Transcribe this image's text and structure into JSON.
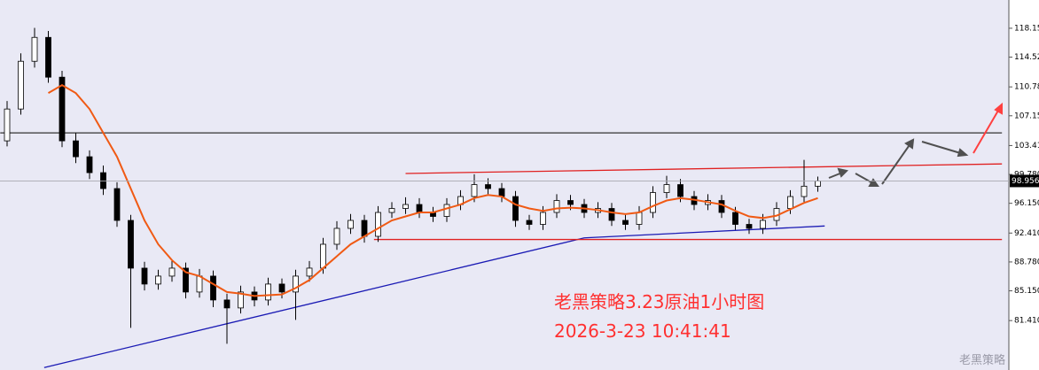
{
  "chart_data": {
    "type": "candlestick",
    "ylim": [
      75.2,
      121.7
    ],
    "yticks": [
      {
        "value": 118.15,
        "label": "118.150"
      },
      {
        "value": 114.52,
        "label": "114.520"
      },
      {
        "value": 110.78,
        "label": "110.780"
      },
      {
        "value": 107.15,
        "label": "107.150"
      },
      {
        "value": 103.41,
        "label": "103.410"
      },
      {
        "value": 99.78,
        "label": "99.780"
      },
      {
        "value": 96.15,
        "label": "96.150"
      },
      {
        "value": 92.41,
        "label": "92.410"
      },
      {
        "value": 88.78,
        "label": "88.780"
      },
      {
        "value": 85.15,
        "label": "85.150"
      },
      {
        "value": 81.41,
        "label": "81.410"
      }
    ],
    "current_price": 98.956,
    "up_color": "#ffffff",
    "down_color": "#000000",
    "candles": [
      [
        104,
        109,
        103.3,
        108
      ],
      [
        108,
        115,
        107.3,
        114
      ],
      [
        114,
        118.2,
        113.2,
        117
      ],
      [
        117,
        117.8,
        111.3,
        112
      ],
      [
        112,
        112.8,
        103.2,
        104
      ],
      [
        104,
        105,
        101.2,
        102
      ],
      [
        102,
        102.8,
        99.2,
        100
      ],
      [
        100,
        100.9,
        97.2,
        98
      ],
      [
        98,
        98.8,
        93.2,
        94
      ],
      [
        94,
        94.7,
        80.5,
        88
      ],
      [
        88,
        88.8,
        85.2,
        86
      ],
      [
        86,
        87.8,
        85.3,
        87
      ],
      [
        87,
        88.9,
        86.3,
        88
      ],
      [
        88,
        88.7,
        84.2,
        85
      ],
      [
        85,
        87.9,
        84.3,
        87
      ],
      [
        87,
        87.7,
        83.1,
        84
      ],
      [
        84,
        84.8,
        78.5,
        83
      ],
      [
        83,
        85.8,
        82.3,
        85
      ],
      [
        85,
        85.7,
        83.2,
        84
      ],
      [
        84,
        86.8,
        83.3,
        86
      ],
      [
        86,
        86.7,
        84.2,
        85
      ],
      [
        85,
        87.8,
        81.5,
        87
      ],
      [
        87,
        88.9,
        86.3,
        88
      ],
      [
        88,
        91.8,
        87.3,
        91
      ],
      [
        91,
        93.9,
        90.3,
        93
      ],
      [
        93,
        94.8,
        92.3,
        94
      ],
      [
        94,
        94.7,
        91.2,
        92
      ],
      [
        92,
        95.8,
        91.3,
        95
      ],
      [
        95,
        96.3,
        94.3,
        95.5
      ],
      [
        95.5,
        96.9,
        94.8,
        96
      ],
      [
        96,
        96.8,
        94.3,
        95
      ],
      [
        95,
        95.7,
        93.8,
        94.5
      ],
      [
        94.5,
        96.8,
        93.8,
        96
      ],
      [
        96,
        97.8,
        95.3,
        97
      ],
      [
        97,
        99.8,
        96.3,
        98.5
      ],
      [
        98.5,
        99.3,
        97.3,
        98
      ],
      [
        98,
        98.7,
        96.3,
        97
      ],
      [
        97,
        97.7,
        93.2,
        94
      ],
      [
        94,
        94.7,
        92.8,
        93.5
      ],
      [
        93.5,
        95.8,
        92.8,
        95
      ],
      [
        95,
        97.3,
        94.3,
        96.5
      ],
      [
        96.5,
        97.2,
        95.3,
        96
      ],
      [
        96,
        96.7,
        94.3,
        95
      ],
      [
        95,
        96.3,
        94.3,
        95.5
      ],
      [
        95.5,
        96.2,
        93.3,
        94
      ],
      [
        94,
        94.7,
        92.8,
        93.5
      ],
      [
        93.5,
        95.8,
        92.8,
        95
      ],
      [
        95,
        98.3,
        94.3,
        97.5
      ],
      [
        97.5,
        99.6,
        96.8,
        98.5
      ],
      [
        98.5,
        99.2,
        96.3,
        97
      ],
      [
        97,
        97.7,
        95.3,
        96
      ],
      [
        96,
        97.3,
        95.3,
        96.5
      ],
      [
        96.5,
        97.2,
        94.3,
        95
      ],
      [
        95,
        95.7,
        92.8,
        93.5
      ],
      [
        93.5,
        94.2,
        92.3,
        93
      ],
      [
        93,
        94.8,
        92.3,
        94
      ],
      [
        94,
        96.3,
        93.3,
        95.5
      ],
      [
        95.5,
        97.8,
        94.8,
        97
      ],
      [
        97,
        101.6,
        96.3,
        98.3
      ],
      [
        98.3,
        99.5,
        97.6,
        98.956
      ]
    ],
    "ma": {
      "color": "#f05a14",
      "values": [
        null,
        null,
        null,
        110,
        111,
        110,
        108,
        105,
        102,
        98,
        94,
        91,
        89,
        87.5,
        87,
        86,
        85,
        84.8,
        84.5,
        84.6,
        84.7,
        85.5,
        86.5,
        88,
        89.5,
        91,
        92,
        93,
        94,
        94.5,
        95,
        95,
        95.5,
        96,
        96.8,
        97.2,
        97,
        96,
        95.5,
        95.2,
        95.5,
        95.6,
        95.5,
        95.3,
        95,
        94.8,
        95,
        95.8,
        96.5,
        96.8,
        96.6,
        96.3,
        96,
        95.2,
        94.5,
        94.3,
        94.6,
        95.4,
        96.2,
        96.8
      ]
    },
    "trendlines": [
      {
        "color": "#1a1ab4",
        "x": [
          2.7,
          42,
          59.5
        ],
        "y": [
          75.5,
          91.8,
          93.3
        ]
      },
      {
        "color": "#333333",
        "x": [
          -0.5,
          72.4
        ],
        "y": [
          105.0,
          105.0
        ]
      },
      {
        "color": "#e02020",
        "x": [
          29,
          72.4
        ],
        "y": [
          99.9,
          101.1
        ]
      },
      {
        "color": "#e02020",
        "x": [
          26.7,
          72.4
        ],
        "y": [
          91.6,
          91.6
        ]
      }
    ]
  },
  "annotation": [
    "老黑策略3.23原油1小时图",
    "2026-3-23 10:41:41"
  ],
  "watermark": "老黑策略"
}
